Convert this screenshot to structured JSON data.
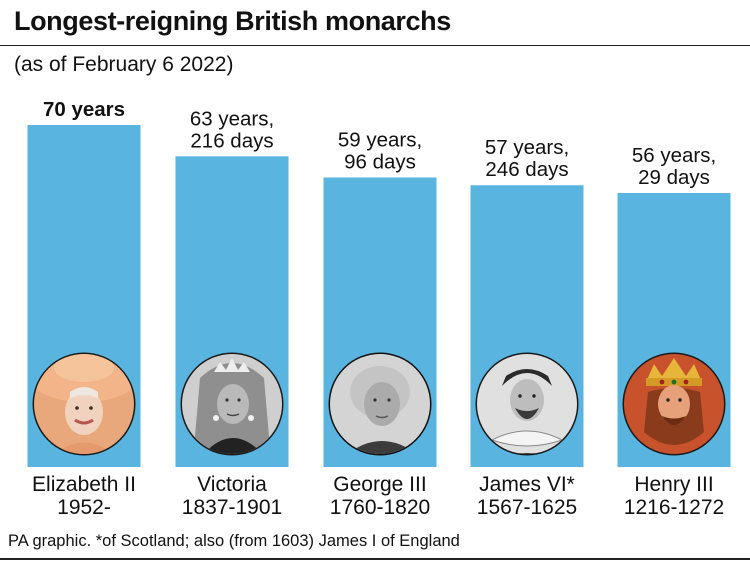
{
  "title": "Longest-reigning British monarchs",
  "subtitle": "(as of February 6 2022)",
  "footnote": "PA graphic. *of Scotland; also (from 1603) James I of England",
  "colors": {
    "bar": "#5ab4e0",
    "text": "#111111",
    "rule": "#222222"
  },
  "chart_data": {
    "type": "bar",
    "categories": [
      "Elizabeth II",
      "Victoria",
      "George III",
      "James VI*",
      "Henry III"
    ],
    "periods": [
      "1952-",
      "1837-1901",
      "1760-1820",
      "1567-1625",
      "1216-1272"
    ],
    "values": [
      70,
      63.59,
      59.26,
      57.67,
      56.08
    ],
    "value_labels": [
      [
        "70 years"
      ],
      [
        "63 years,",
        "216 days"
      ],
      [
        "59 years,",
        "96 days"
      ],
      [
        "57 years,",
        "246 days"
      ],
      [
        "56 years,",
        "29 days"
      ]
    ],
    "highlight_first_label": true,
    "portraits": [
      "elizabeth-ii-portrait",
      "victoria-portrait",
      "george-iii-portrait",
      "james-vi-portrait",
      "henry-iii-portrait"
    ],
    "ylim": [
      0,
      70
    ]
  }
}
